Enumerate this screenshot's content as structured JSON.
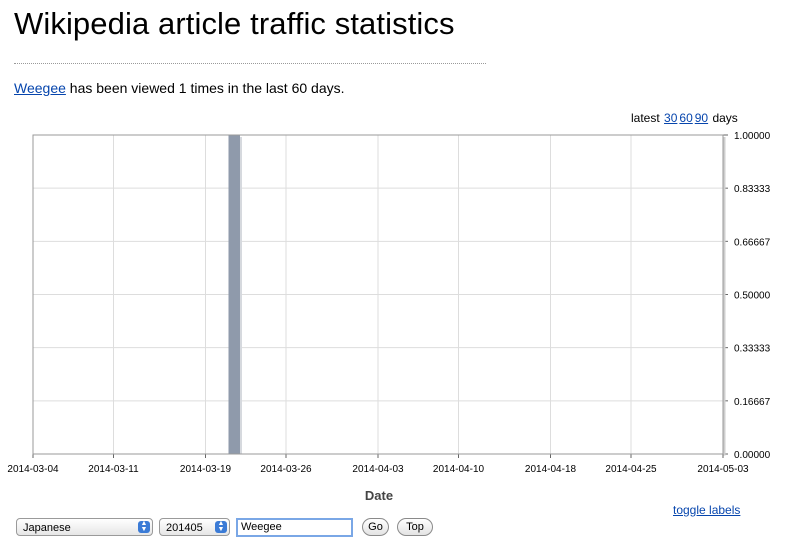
{
  "header": {
    "title": "Wikipedia article traffic statistics"
  },
  "summary": {
    "article_link": "Weegee",
    "text": "has been viewed 1 times in the last 60 days."
  },
  "range_selector": {
    "prefix": "latest",
    "options": [
      "30",
      "60",
      "90"
    ],
    "suffix": "days"
  },
  "chart_data": {
    "type": "bar",
    "xlabel": "Date",
    "x_tick_labels": [
      "2014-03-04",
      "2014-03-11",
      "2014-03-19",
      "2014-03-26",
      "2014-04-03",
      "2014-04-10",
      "2014-04-18",
      "2014-04-25",
      "2014-05-03"
    ],
    "y_tick_labels": [
      "1.00000",
      "0.83333",
      "0.66667",
      "0.50000",
      "0.33333",
      "0.16667",
      "0.00000"
    ],
    "ylim": [
      0,
      1
    ],
    "grid": true,
    "bars": [
      {
        "date": "2014-03-21",
        "value": 1
      }
    ],
    "colors": {
      "bar": "#8f9aab",
      "grid": "#dddddd",
      "frame": "#999999"
    }
  },
  "footer": {
    "toggle_labels": "toggle labels",
    "language_select": "Japanese",
    "month_select": "201405",
    "article_input": "Weegee",
    "go_button": "Go",
    "top_button": "Top"
  }
}
